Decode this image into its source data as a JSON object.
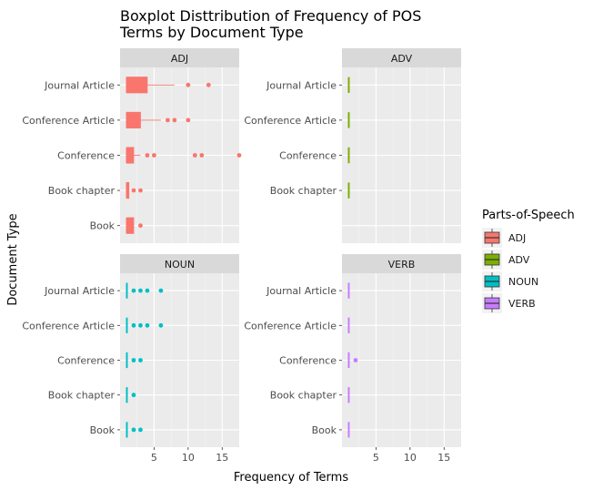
{
  "chart_data": {
    "type": "boxplot",
    "title_lines": [
      "Boxplot Disttribution of Frequency of POS",
      "Terms by Document Type"
    ],
    "xlabel": "Frequency of Terms",
    "ylabel": "Document Type",
    "xlim": [
      0,
      17.5
    ],
    "x_ticks": [
      5,
      10,
      15
    ],
    "categories": [
      "Book",
      "Book chapter",
      "Conference",
      "Conference Article",
      "Journal Article"
    ],
    "legend": {
      "title": "Parts-of-Speech",
      "entries": [
        {
          "label": "ADJ",
          "color": "#F8766D"
        },
        {
          "label": "ADV",
          "color": "#7CAE00"
        },
        {
          "label": "NOUN",
          "color": "#00BFC4"
        },
        {
          "label": "VERB",
          "color": "#C77CFF"
        }
      ]
    },
    "panels": [
      {
        "name": "ADJ",
        "color": "#F8766D",
        "show_y_labels": true,
        "boxes": [
          {
            "category": "Journal Article",
            "min": 1,
            "q1": 1,
            "median": 1,
            "q3": 4,
            "max": 8,
            "outliers": [
              10,
              13
            ]
          },
          {
            "category": "Conference Article",
            "min": 1,
            "q1": 1,
            "median": 1,
            "q3": 3,
            "max": 6,
            "outliers": [
              7,
              8,
              10
            ]
          },
          {
            "category": "Conference",
            "min": 1,
            "q1": 1,
            "median": 1,
            "q3": 2,
            "max": 3,
            "outliers": [
              4,
              5,
              11,
              12,
              17.5
            ]
          },
          {
            "category": "Book chapter",
            "min": 1,
            "q1": 1,
            "median": 1,
            "q3": 1.3,
            "max": 1.3,
            "outliers": [
              2,
              3
            ]
          },
          {
            "category": "Book",
            "min": 1,
            "q1": 1,
            "median": 1,
            "q3": 2,
            "max": 2,
            "outliers": [
              3
            ]
          }
        ]
      },
      {
        "name": "ADV",
        "color": "#7CAE00",
        "show_y_labels": true,
        "boxes": [
          {
            "category": "Journal Article",
            "min": 1,
            "q1": 1,
            "median": 1,
            "q3": 1,
            "max": 1,
            "outliers": []
          },
          {
            "category": "Conference Article",
            "min": 1,
            "q1": 1,
            "median": 1,
            "q3": 1,
            "max": 1,
            "outliers": []
          },
          {
            "category": "Conference",
            "min": 1,
            "q1": 1,
            "median": 1,
            "q3": 1,
            "max": 1,
            "outliers": []
          },
          {
            "category": "Book chapter",
            "min": 1,
            "q1": 1,
            "median": 1,
            "q3": 1,
            "max": 1,
            "outliers": []
          }
        ]
      },
      {
        "name": "NOUN",
        "color": "#00BFC4",
        "show_y_labels": true,
        "boxes": [
          {
            "category": "Journal Article",
            "min": 1,
            "q1": 1,
            "median": 1,
            "q3": 1,
            "max": 1,
            "outliers": [
              2,
              3,
              4,
              6
            ]
          },
          {
            "category": "Conference Article",
            "min": 1,
            "q1": 1,
            "median": 1,
            "q3": 1,
            "max": 1,
            "outliers": [
              2,
              3,
              4,
              6
            ]
          },
          {
            "category": "Conference",
            "min": 1,
            "q1": 1,
            "median": 1,
            "q3": 1,
            "max": 1,
            "outliers": [
              2,
              3
            ]
          },
          {
            "category": "Book chapter",
            "min": 1,
            "q1": 1,
            "median": 1,
            "q3": 1,
            "max": 1,
            "outliers": [
              2
            ]
          },
          {
            "category": "Book",
            "min": 1,
            "q1": 1,
            "median": 1,
            "q3": 1,
            "max": 1,
            "outliers": [
              2,
              3
            ]
          }
        ]
      },
      {
        "name": "VERB",
        "color": "#C77CFF",
        "show_y_labels": true,
        "boxes": [
          {
            "category": "Journal Article",
            "min": 1,
            "q1": 1,
            "median": 1,
            "q3": 1,
            "max": 1,
            "outliers": []
          },
          {
            "category": "Conference Article",
            "min": 1,
            "q1": 1,
            "median": 1,
            "q3": 1,
            "max": 1,
            "outliers": []
          },
          {
            "category": "Conference",
            "min": 1,
            "q1": 1,
            "median": 1,
            "q3": 1,
            "max": 1,
            "outliers": [
              2
            ]
          },
          {
            "category": "Book chapter",
            "min": 1,
            "q1": 1,
            "median": 1,
            "q3": 1,
            "max": 1,
            "outliers": []
          },
          {
            "category": "Book",
            "min": 1,
            "q1": 1,
            "median": 1,
            "q3": 1,
            "max": 1,
            "outliers": []
          }
        ]
      }
    ],
    "grid": true,
    "legend_position": "right"
  }
}
